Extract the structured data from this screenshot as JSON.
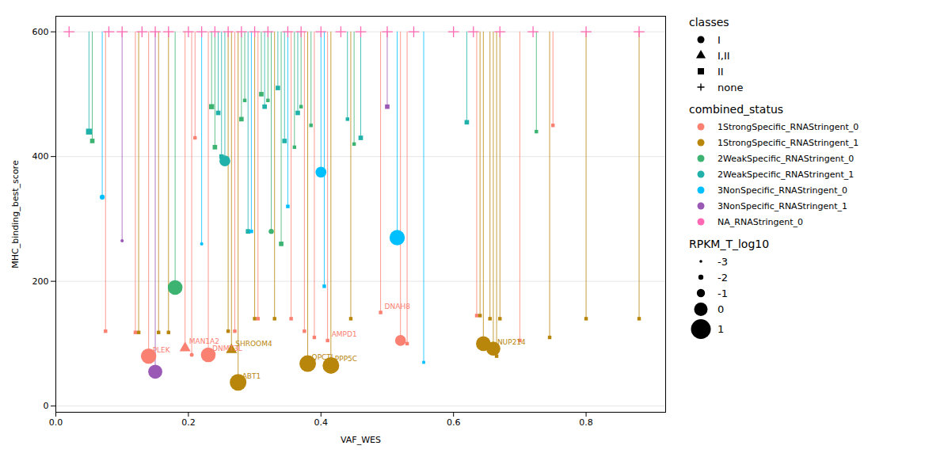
{
  "chart_data": {
    "type": "scatter",
    "xlabel": "VAF_WES",
    "ylabel": "MHC_binding_best_score",
    "xlim": [
      0.0,
      0.92
    ],
    "ylim": [
      -10,
      625
    ],
    "xticks": [
      {
        "value": 0,
        "label": "0.0"
      },
      0.2,
      0.4,
      0.6,
      0.8
    ],
    "yticks": [
      0,
      200,
      400,
      600
    ],
    "grid": "y",
    "top_y": 600,
    "series_title": "combined_status",
    "series": [
      {
        "name": "1StrongSpecific_RNAStringent_0",
        "color": "#FA8072"
      },
      {
        "name": "1StrongSpecific_RNAStringent_1",
        "color": "#B8860B"
      },
      {
        "name": "2WeakSpecific_RNAStringent_0",
        "color": "#3CB371"
      },
      {
        "name": "2WeakSpecific_RNAStringent_1",
        "color": "#20B2AA"
      },
      {
        "name": "3NonSpecific_RNAStringent_0",
        "color": "#00BFFF"
      },
      {
        "name": "3NonSpecific_RNAStringent_1",
        "color": "#9B59B6"
      },
      {
        "name": "NA_RNAStringent_0",
        "color": "#FF69B4"
      }
    ],
    "classes": {
      "title": "classes",
      "entries": [
        {
          "label": "I",
          "marker": "circle"
        },
        {
          "label": "I,II",
          "marker": "triangle"
        },
        {
          "label": "II",
          "marker": "square"
        },
        {
          "label": "none",
          "marker": "plus"
        }
      ]
    },
    "size_legend": {
      "title": "RPKM_T_log10",
      "values": [
        -3,
        -2,
        -1,
        0,
        1
      ]
    },
    "na_points": {
      "status": "NA_RNAStringent_0",
      "class": "none",
      "x": [
        0.02,
        0.08,
        0.1,
        0.13,
        0.15,
        0.17,
        0.2,
        0.22,
        0.24,
        0.26,
        0.28,
        0.3,
        0.32,
        0.35,
        0.37,
        0.4,
        0.43,
        0.46,
        0.5,
        0.54,
        0.6,
        0.63,
        0.67,
        0.72,
        0.8,
        0.88
      ]
    },
    "points": [
      {
        "x": 0.05,
        "y": 440,
        "status": "2WeakSpecific_RNAStringent_1",
        "class": "II",
        "size": -1.5
      },
      {
        "x": 0.055,
        "y": 425,
        "status": "2WeakSpecific_RNAStringent_0",
        "class": "II",
        "size": -2
      },
      {
        "x": 0.07,
        "y": 335,
        "status": "3NonSpecific_RNAStringent_0",
        "class": "I",
        "size": -2
      },
      {
        "x": 0.075,
        "y": 120,
        "status": "1StrongSpecific_RNAStringent_0",
        "class": "II",
        "size": -2.5
      },
      {
        "x": 0.1,
        "y": 265,
        "status": "3NonSpecific_RNAStringent_1",
        "class": "I",
        "size": -2.8
      },
      {
        "x": 0.12,
        "y": 118,
        "status": "1StrongSpecific_RNAStringent_0",
        "class": "II",
        "size": -2.5
      },
      {
        "x": 0.125,
        "y": 118,
        "status": "1StrongSpecific_RNAStringent_1",
        "class": "II",
        "size": -2.5
      },
      {
        "x": 0.14,
        "y": 80,
        "status": "1StrongSpecific_RNAStringent_0",
        "class": "I",
        "size": 0.3,
        "label": "PLEK"
      },
      {
        "x": 0.15,
        "y": 55,
        "status": "3NonSpecific_RNAStringent_1",
        "class": "I",
        "size": 0.1
      },
      {
        "x": 0.155,
        "y": 118,
        "status": "1StrongSpecific_RNAStringent_1",
        "class": "II",
        "size": -2.5
      },
      {
        "x": 0.17,
        "y": 118,
        "status": "1StrongSpecific_RNAStringent_1",
        "class": "II",
        "size": -2.5
      },
      {
        "x": 0.18,
        "y": 190,
        "status": "2WeakSpecific_RNAStringent_0",
        "class": "I",
        "size": 0.2
      },
      {
        "x": 0.195,
        "y": 93,
        "status": "1StrongSpecific_RNAStringent_0",
        "class": "I,II",
        "size": -1,
        "label": "MAN1A2"
      },
      {
        "x": 0.205,
        "y": 82,
        "status": "1StrongSpecific_RNAStringent_0",
        "class": "I",
        "size": -2.5
      },
      {
        "x": 0.21,
        "y": 430,
        "status": "1StrongSpecific_RNAStringent_0",
        "class": "II",
        "size": -2.5
      },
      {
        "x": 0.22,
        "y": 260,
        "status": "3NonSpecific_RNAStringent_0",
        "class": "I",
        "size": -2.8
      },
      {
        "x": 0.23,
        "y": 82,
        "status": "1StrongSpecific_RNAStringent_0",
        "class": "I",
        "size": 0.2,
        "label": "DNMT3L"
      },
      {
        "x": 0.235,
        "y": 480,
        "status": "2WeakSpecific_RNAStringent_0",
        "class": "II",
        "size": -1.8
      },
      {
        "x": 0.24,
        "y": 415,
        "status": "2WeakSpecific_RNAStringent_0",
        "class": "II",
        "size": -2
      },
      {
        "x": 0.245,
        "y": 470,
        "status": "2WeakSpecific_RNAStringent_1",
        "class": "II",
        "size": -2
      },
      {
        "x": 0.25,
        "y": 400,
        "status": "2WeakSpecific_RNAStringent_1",
        "class": "II",
        "size": -2
      },
      {
        "x": 0.255,
        "y": 393,
        "status": "2WeakSpecific_RNAStringent_1",
        "class": "I",
        "size": -0.5
      },
      {
        "x": 0.26,
        "y": 120,
        "status": "1StrongSpecific_RNAStringent_1",
        "class": "II",
        "size": -2.5
      },
      {
        "x": 0.265,
        "y": 90,
        "status": "1StrongSpecific_RNAStringent_1",
        "class": "I,II",
        "size": -1,
        "label": "SHROOM4"
      },
      {
        "x": 0.27,
        "y": 120,
        "status": "1StrongSpecific_RNAStringent_0",
        "class": "II",
        "size": -2.5
      },
      {
        "x": 0.275,
        "y": 38,
        "status": "1StrongSpecific_RNAStringent_1",
        "class": "I",
        "size": 0.5,
        "label": "ABT1"
      },
      {
        "x": 0.28,
        "y": 460,
        "status": "2WeakSpecific_RNAStringent_0",
        "class": "II",
        "size": -2
      },
      {
        "x": 0.285,
        "y": 490,
        "status": "2WeakSpecific_RNAStringent_0",
        "class": "II",
        "size": -2.5
      },
      {
        "x": 0.29,
        "y": 280,
        "status": "2WeakSpecific_RNAStringent_1",
        "class": "II",
        "size": -2
      },
      {
        "x": 0.295,
        "y": 280,
        "status": "3NonSpecific_RNAStringent_0",
        "class": "II",
        "size": -2.5
      },
      {
        "x": 0.3,
        "y": 140,
        "status": "1StrongSpecific_RNAStringent_1",
        "class": "II",
        "size": -2.5
      },
      {
        "x": 0.305,
        "y": 140,
        "status": "1StrongSpecific_RNAStringent_0",
        "class": "II",
        "size": -2.5
      },
      {
        "x": 0.31,
        "y": 500,
        "status": "2WeakSpecific_RNAStringent_0",
        "class": "II",
        "size": -2
      },
      {
        "x": 0.315,
        "y": 480,
        "status": "2WeakSpecific_RNAStringent_1",
        "class": "II",
        "size": -2
      },
      {
        "x": 0.32,
        "y": 490,
        "status": "2WeakSpecific_RNAStringent_0",
        "class": "II",
        "size": -2.5
      },
      {
        "x": 0.325,
        "y": 280,
        "status": "2WeakSpecific_RNAStringent_0",
        "class": "I",
        "size": -2
      },
      {
        "x": 0.33,
        "y": 140,
        "status": "1StrongSpecific_RNAStringent_1",
        "class": "II",
        "size": -2.5
      },
      {
        "x": 0.335,
        "y": 510,
        "status": "2WeakSpecific_RNAStringent_1",
        "class": "II",
        "size": -2
      },
      {
        "x": 0.34,
        "y": 260,
        "status": "2WeakSpecific_RNAStringent_0",
        "class": "II",
        "size": -2
      },
      {
        "x": 0.345,
        "y": 425,
        "status": "2WeakSpecific_RNAStringent_1",
        "class": "II",
        "size": -2
      },
      {
        "x": 0.35,
        "y": 320,
        "status": "3NonSpecific_RNAStringent_0",
        "class": "II",
        "size": -2.5
      },
      {
        "x": 0.355,
        "y": 140,
        "status": "1StrongSpecific_RNAStringent_0",
        "class": "II",
        "size": -2.5
      },
      {
        "x": 0.36,
        "y": 415,
        "status": "2WeakSpecific_RNAStringent_0",
        "class": "II",
        "size": -2.5
      },
      {
        "x": 0.365,
        "y": 470,
        "status": "2WeakSpecific_RNAStringent_1",
        "class": "II",
        "size": -2
      },
      {
        "x": 0.37,
        "y": 480,
        "status": "2WeakSpecific_RNAStringent_0",
        "class": "II",
        "size": -2.5
      },
      {
        "x": 0.375,
        "y": 120,
        "status": "1StrongSpecific_RNAStringent_0",
        "class": "II",
        "size": -2.5
      },
      {
        "x": 0.38,
        "y": 68,
        "status": "1StrongSpecific_RNAStringent_1",
        "class": "I",
        "size": 0.5,
        "label": "QPCTL"
      },
      {
        "x": 0.385,
        "y": 450,
        "status": "2WeakSpecific_RNAStringent_0",
        "class": "II",
        "size": -2.5
      },
      {
        "x": 0.39,
        "y": 110,
        "status": "1StrongSpecific_RNAStringent_0",
        "class": "II",
        "size": -2.5
      },
      {
        "x": 0.4,
        "y": 375,
        "status": "3NonSpecific_RNAStringent_0",
        "class": "I",
        "size": -0.5
      },
      {
        "x": 0.405,
        "y": 192,
        "status": "3NonSpecific_RNAStringent_0",
        "class": "II",
        "size": -2.5
      },
      {
        "x": 0.41,
        "y": 105,
        "status": "1StrongSpecific_RNAStringent_0",
        "class": "II",
        "size": -2.5,
        "label": "AMPD1"
      },
      {
        "x": 0.415,
        "y": 65,
        "status": "1StrongSpecific_RNAStringent_1",
        "class": "I",
        "size": 0.5,
        "label": "PPP5C"
      },
      {
        "x": 0.44,
        "y": 460,
        "status": "2WeakSpecific_RNAStringent_1",
        "class": "II",
        "size": -2.5
      },
      {
        "x": 0.445,
        "y": 140,
        "status": "1StrongSpecific_RNAStringent_1",
        "class": "II",
        "size": -2.5
      },
      {
        "x": 0.45,
        "y": 420,
        "status": "2WeakSpecific_RNAStringent_0",
        "class": "II",
        "size": -2.5
      },
      {
        "x": 0.46,
        "y": 430,
        "status": "2WeakSpecific_RNAStringent_1",
        "class": "II",
        "size": -2
      },
      {
        "x": 0.49,
        "y": 150,
        "status": "1StrongSpecific_RNAStringent_0",
        "class": "II",
        "size": -2.5,
        "label": "DNAH8"
      },
      {
        "x": 0.5,
        "y": 480,
        "status": "3NonSpecific_RNAStringent_1",
        "class": "II",
        "size": -2
      },
      {
        "x": 0.515,
        "y": 270,
        "status": "3NonSpecific_RNAStringent_0",
        "class": "I",
        "size": 0.3
      },
      {
        "x": 0.52,
        "y": 105,
        "status": "1StrongSpecific_RNAStringent_0",
        "class": "I",
        "size": -0.5
      },
      {
        "x": 0.53,
        "y": 100,
        "status": "1StrongSpecific_RNAStringent_0",
        "class": "II",
        "size": -2.5
      },
      {
        "x": 0.555,
        "y": 70,
        "status": "3NonSpecific_RNAStringent_0",
        "class": "II",
        "size": -2.8
      },
      {
        "x": 0.62,
        "y": 455,
        "status": "2WeakSpecific_RNAStringent_1",
        "class": "II",
        "size": -2
      },
      {
        "x": 0.635,
        "y": 145,
        "status": "1StrongSpecific_RNAStringent_0",
        "class": "II",
        "size": -2.5
      },
      {
        "x": 0.64,
        "y": 145,
        "status": "1StrongSpecific_RNAStringent_1",
        "class": "II",
        "size": -2.5
      },
      {
        "x": 0.645,
        "y": 100,
        "status": "1StrongSpecific_RNAStringent_1",
        "class": "I",
        "size": 0.2
      },
      {
        "x": 0.655,
        "y": 140,
        "status": "1StrongSpecific_RNAStringent_1",
        "class": "II",
        "size": -2.5
      },
      {
        "x": 0.66,
        "y": 92,
        "status": "1StrongSpecific_RNAStringent_1",
        "class": "I",
        "size": 0.1,
        "label": "NUP214"
      },
      {
        "x": 0.665,
        "y": 80,
        "status": "1StrongSpecific_RNAStringent_1",
        "class": "II",
        "size": -2.5
      },
      {
        "x": 0.67,
        "y": 140,
        "status": "1StrongSpecific_RNAStringent_1",
        "class": "II",
        "size": -2.5
      },
      {
        "x": 0.7,
        "y": 105,
        "status": "1StrongSpecific_RNAStringent_0",
        "class": "II",
        "size": -2.5
      },
      {
        "x": 0.725,
        "y": 440,
        "status": "2WeakSpecific_RNAStringent_0",
        "class": "II",
        "size": -2.5
      },
      {
        "x": 0.745,
        "y": 110,
        "status": "1StrongSpecific_RNAStringent_1",
        "class": "II",
        "size": -2.5
      },
      {
        "x": 0.75,
        "y": 450,
        "status": "1StrongSpecific_RNAStringent_0",
        "class": "II",
        "size": -2.5
      },
      {
        "x": 0.8,
        "y": 140,
        "status": "1StrongSpecific_RNAStringent_1",
        "class": "II",
        "size": -2.5
      },
      {
        "x": 0.88,
        "y": 140,
        "status": "1StrongSpecific_RNAStringent_1",
        "class": "II",
        "size": -2.5
      }
    ]
  }
}
